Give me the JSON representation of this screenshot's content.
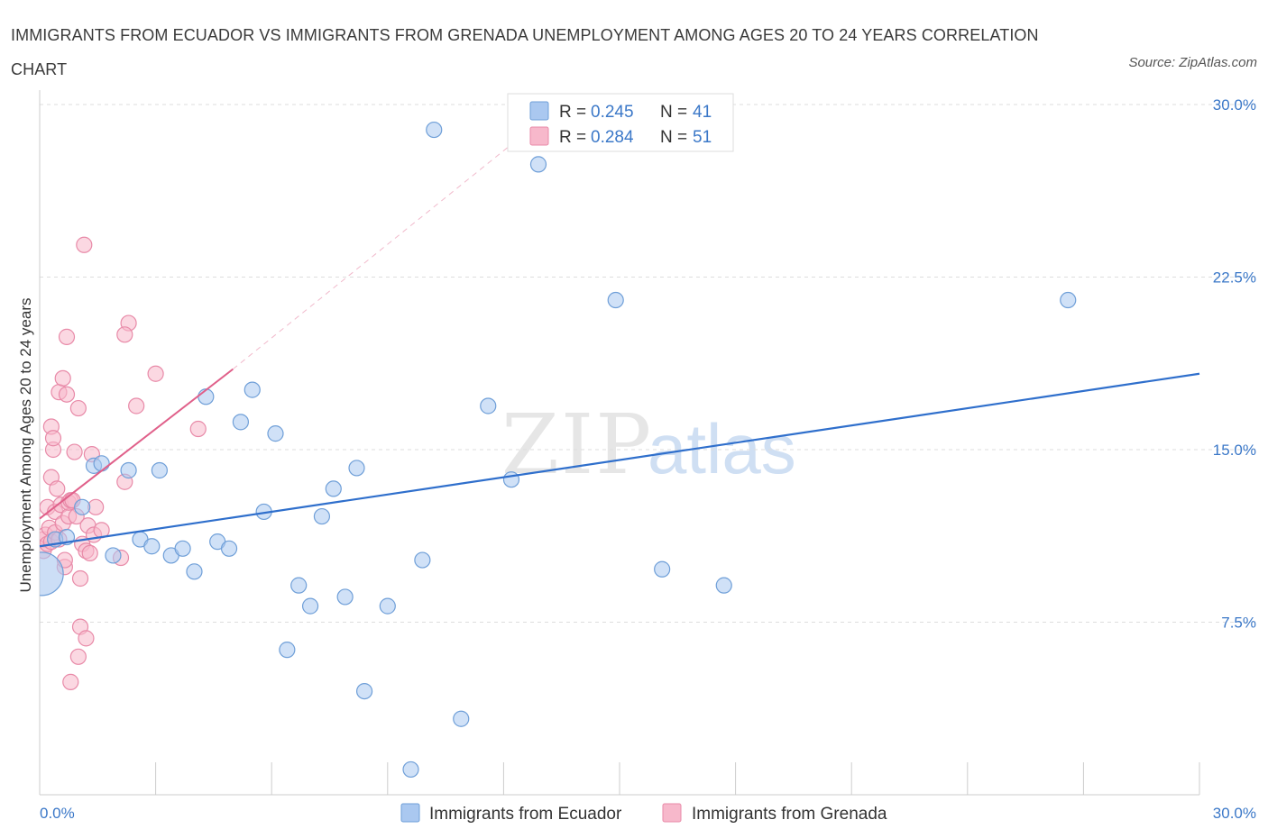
{
  "title": "IMMIGRANTS FROM ECUADOR VS IMMIGRANTS FROM GRENADA UNEMPLOYMENT AMONG AGES 20 TO 24 YEARS CORRELATION CHART",
  "source": "Source: ZipAtlas.com",
  "watermark": {
    "zip": "ZIP",
    "atlas": "atlas"
  },
  "colors": {
    "ecuador_fill": "#aac8f0",
    "ecuador_stroke": "#6f9fd8",
    "ecuador_line": "#2f6fcc",
    "grenada_fill": "#f7b8cb",
    "grenada_stroke": "#e88aa8",
    "grenada_line": "#e0608a",
    "accent_text": "#3b78c8"
  },
  "legend": {
    "rows": [
      {
        "r_label": "R = ",
        "r_value": "0.245",
        "n_label": "N = ",
        "n_value": "41"
      },
      {
        "r_label": "R = ",
        "r_value": "0.284",
        "n_label": "N = ",
        "n_value": "51"
      }
    ]
  },
  "bottom_legend": [
    "Immigrants from Ecuador",
    "Immigrants from Grenada"
  ],
  "chart_data": {
    "type": "scatter",
    "title": "IMMIGRANTS FROM ECUADOR VS IMMIGRANTS FROM GRENADA UNEMPLOYMENT AMONG AGES 20 TO 24 YEARS CORRELATION CHART",
    "xlabel": "",
    "ylabel": "Unemployment Among Ages 20 to 24 years",
    "xlim": [
      0,
      30
    ],
    "ylim": [
      0,
      30
    ],
    "x_tick_labels": [
      "0.0%",
      "30.0%"
    ],
    "y_ticks": [
      7.5,
      15.0,
      22.5,
      30.0
    ],
    "y_tick_labels": [
      "7.5%",
      "15.0%",
      "22.5%",
      "30.0%"
    ],
    "grid": true,
    "legend_position": "top-center",
    "series": [
      {
        "name": "Immigrants from Ecuador",
        "R": 0.245,
        "N": 41,
        "trend": {
          "x": [
            0.0,
            30.0
          ],
          "y": [
            10.8,
            18.3
          ]
        },
        "points": [
          {
            "x": 0.05,
            "y": 9.6,
            "big": true
          },
          {
            "x": 0.4,
            "y": 11.1
          },
          {
            "x": 0.7,
            "y": 11.2
          },
          {
            "x": 1.1,
            "y": 12.5
          },
          {
            "x": 1.4,
            "y": 14.3
          },
          {
            "x": 1.6,
            "y": 14.4
          },
          {
            "x": 1.9,
            "y": 10.4
          },
          {
            "x": 2.3,
            "y": 14.1
          },
          {
            "x": 2.6,
            "y": 11.1
          },
          {
            "x": 2.9,
            "y": 10.8
          },
          {
            "x": 3.1,
            "y": 14.1
          },
          {
            "x": 3.4,
            "y": 10.4
          },
          {
            "x": 3.7,
            "y": 10.7
          },
          {
            "x": 4.0,
            "y": 9.7
          },
          {
            "x": 4.3,
            "y": 17.3
          },
          {
            "x": 4.6,
            "y": 11.0
          },
          {
            "x": 4.9,
            "y": 10.7
          },
          {
            "x": 5.2,
            "y": 16.2
          },
          {
            "x": 5.5,
            "y": 17.6
          },
          {
            "x": 5.8,
            "y": 12.3
          },
          {
            "x": 6.1,
            "y": 15.7
          },
          {
            "x": 6.4,
            "y": 6.3
          },
          {
            "x": 6.7,
            "y": 9.1
          },
          {
            "x": 7.0,
            "y": 8.2
          },
          {
            "x": 7.3,
            "y": 12.1
          },
          {
            "x": 7.6,
            "y": 13.3
          },
          {
            "x": 7.9,
            "y": 8.6
          },
          {
            "x": 8.2,
            "y": 14.2
          },
          {
            "x": 8.4,
            "y": 4.5
          },
          {
            "x": 9.0,
            "y": 8.2
          },
          {
            "x": 9.6,
            "y": 1.1
          },
          {
            "x": 9.9,
            "y": 10.2
          },
          {
            "x": 10.2,
            "y": 28.9
          },
          {
            "x": 10.9,
            "y": 3.3
          },
          {
            "x": 11.6,
            "y": 16.9
          },
          {
            "x": 12.2,
            "y": 13.7
          },
          {
            "x": 12.9,
            "y": 27.4
          },
          {
            "x": 14.9,
            "y": 21.5
          },
          {
            "x": 16.1,
            "y": 9.8
          },
          {
            "x": 17.7,
            "y": 9.1
          },
          {
            "x": 26.6,
            "y": 21.5
          }
        ]
      },
      {
        "name": "Immigrants from Grenada",
        "R": 0.284,
        "N": 51,
        "trend": {
          "x": [
            0.0,
            5.0
          ],
          "y": [
            12.0,
            18.5
          ]
        },
        "trend_extended": {
          "x": [
            5.0,
            12.3
          ],
          "y": [
            18.5,
            28.4
          ]
        },
        "points": [
          {
            "x": 0.1,
            "y": 10.6
          },
          {
            "x": 0.1,
            "y": 11.1
          },
          {
            "x": 0.15,
            "y": 11.3
          },
          {
            "x": 0.2,
            "y": 10.9
          },
          {
            "x": 0.2,
            "y": 12.5
          },
          {
            "x": 0.25,
            "y": 11.6
          },
          {
            "x": 0.3,
            "y": 11.0
          },
          {
            "x": 0.3,
            "y": 13.8
          },
          {
            "x": 0.3,
            "y": 16.0
          },
          {
            "x": 0.35,
            "y": 15.0
          },
          {
            "x": 0.35,
            "y": 15.5
          },
          {
            "x": 0.4,
            "y": 11.4
          },
          {
            "x": 0.4,
            "y": 12.3
          },
          {
            "x": 0.45,
            "y": 13.3
          },
          {
            "x": 0.5,
            "y": 11.1
          },
          {
            "x": 0.5,
            "y": 17.5
          },
          {
            "x": 0.55,
            "y": 12.6
          },
          {
            "x": 0.6,
            "y": 11.8
          },
          {
            "x": 0.6,
            "y": 18.1
          },
          {
            "x": 0.65,
            "y": 9.9
          },
          {
            "x": 0.65,
            "y": 10.2
          },
          {
            "x": 0.7,
            "y": 17.4
          },
          {
            "x": 0.7,
            "y": 19.9
          },
          {
            "x": 0.75,
            "y": 12.1
          },
          {
            "x": 0.75,
            "y": 12.7
          },
          {
            "x": 0.8,
            "y": 4.9
          },
          {
            "x": 0.8,
            "y": 12.8
          },
          {
            "x": 0.85,
            "y": 12.8
          },
          {
            "x": 0.9,
            "y": 14.9
          },
          {
            "x": 0.95,
            "y": 12.1
          },
          {
            "x": 1.0,
            "y": 16.8
          },
          {
            "x": 1.0,
            "y": 6.0
          },
          {
            "x": 1.05,
            "y": 9.4
          },
          {
            "x": 1.05,
            "y": 7.3
          },
          {
            "x": 1.1,
            "y": 10.9
          },
          {
            "x": 1.15,
            "y": 23.9
          },
          {
            "x": 1.2,
            "y": 6.8
          },
          {
            "x": 1.2,
            "y": 10.6
          },
          {
            "x": 1.25,
            "y": 11.7
          },
          {
            "x": 1.3,
            "y": 10.5
          },
          {
            "x": 1.35,
            "y": 14.8
          },
          {
            "x": 1.4,
            "y": 11.3
          },
          {
            "x": 1.45,
            "y": 12.5
          },
          {
            "x": 1.6,
            "y": 11.5
          },
          {
            "x": 2.1,
            "y": 10.3
          },
          {
            "x": 2.2,
            "y": 13.6
          },
          {
            "x": 2.3,
            "y": 20.5
          },
          {
            "x": 2.5,
            "y": 16.9
          },
          {
            "x": 2.2,
            "y": 20.0
          },
          {
            "x": 3.0,
            "y": 18.3
          },
          {
            "x": 4.1,
            "y": 15.9
          }
        ]
      }
    ]
  }
}
